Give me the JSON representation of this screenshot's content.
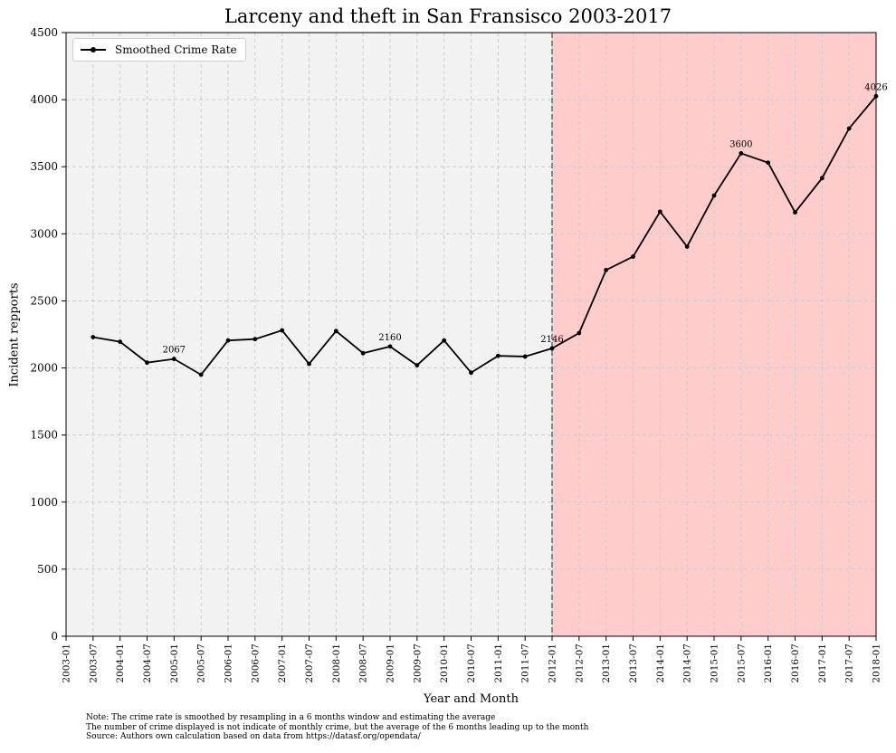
{
  "chart_data": {
    "type": "line",
    "title": "Larceny and theft in San Fransisco 2003-2017",
    "xlabel": "Year and Month",
    "ylabel": "Incident repports",
    "ylim": [
      0,
      4500
    ],
    "yticks": [
      0,
      500,
      1000,
      1500,
      2000,
      2500,
      3000,
      3500,
      4000,
      4500
    ],
    "xlim": [
      "2003-01",
      "2018-01"
    ],
    "xtick_labels": [
      "2003-01",
      "2003-07",
      "2004-01",
      "2004-07",
      "2005-01",
      "2005-07",
      "2006-01",
      "2006-07",
      "2007-01",
      "2007-07",
      "2008-01",
      "2008-07",
      "2009-01",
      "2009-07",
      "2010-01",
      "2010-07",
      "2011-01",
      "2011-07",
      "2012-01",
      "2012-07",
      "2013-01",
      "2013-07",
      "2014-01",
      "2014-07",
      "2015-01",
      "2015-07",
      "2016-01",
      "2016-07",
      "2017-01",
      "2017-07",
      "2018-01"
    ],
    "grid": true,
    "legend_position": "top-left",
    "series": [
      {
        "name": "Smoothed Crime Rate",
        "color": "#000000",
        "x": [
          "2003-07",
          "2004-01",
          "2004-07",
          "2005-01",
          "2005-07",
          "2006-01",
          "2006-07",
          "2007-01",
          "2007-07",
          "2008-01",
          "2008-07",
          "2009-01",
          "2009-07",
          "2010-01",
          "2010-07",
          "2011-01",
          "2011-07",
          "2012-01",
          "2012-07",
          "2013-01",
          "2013-07",
          "2014-01",
          "2014-07",
          "2015-01",
          "2015-07",
          "2016-01",
          "2016-07",
          "2017-01",
          "2017-07",
          "2018-01"
        ],
        "values": [
          2230,
          2195,
          2040,
          2067,
          1950,
          2205,
          2215,
          2280,
          2030,
          2275,
          2110,
          2160,
          2020,
          2205,
          1965,
          2090,
          2085,
          2146,
          2260,
          2730,
          2830,
          3165,
          2905,
          3285,
          3600,
          3530,
          3160,
          3415,
          3785,
          4026
        ]
      }
    ],
    "annotations": [
      {
        "x": "2005-01",
        "value": 2067,
        "text": "2067"
      },
      {
        "x": "2009-01",
        "value": 2160,
        "text": "2160"
      },
      {
        "x": "2012-01",
        "value": 2146,
        "text": "2146"
      },
      {
        "x": "2015-07",
        "value": 3600,
        "text": "3600"
      },
      {
        "x": "2018-01",
        "value": 4026,
        "text": "4026"
      }
    ],
    "regions": [
      {
        "from": "2003-01",
        "to": "2012-01",
        "color": "#f2f2f2"
      },
      {
        "from": "2012-01",
        "to": "2018-01",
        "color": "#ffcccc"
      }
    ],
    "vline": {
      "x": "2012-01",
      "style": "dashed",
      "color": "#888888"
    },
    "notes": [
      "Note: The crime rate is smoothed by resampling in a 6 months window and estimating the average",
      "The number of crime displayed is not indicate of monthly crime, but the average of the 6 months leading up to the month",
      "Source: Authors own calculation based on data from https://datasf.org/opendata/"
    ]
  }
}
